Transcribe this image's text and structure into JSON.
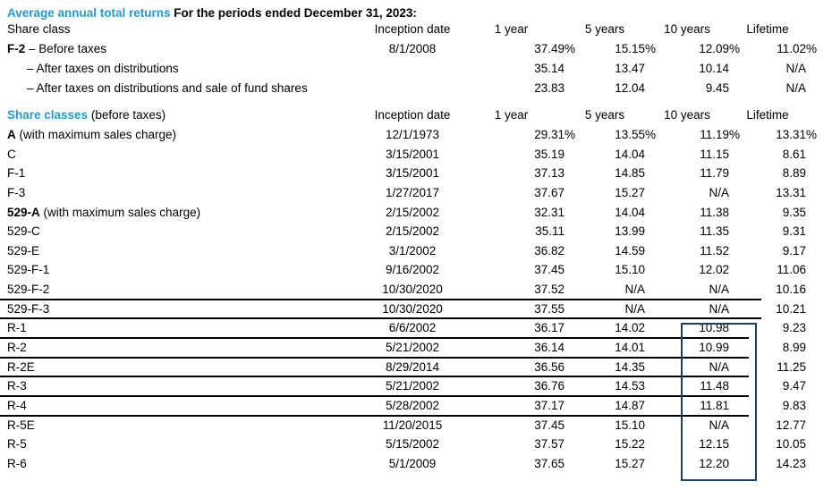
{
  "title": {
    "accent": "Average annual total returns",
    "rest": " For the periods ended December 31, 2023:"
  },
  "colors": {
    "accent_blue": "#1e9bd7",
    "box_border": "#1e3d63",
    "rule_black": "#000000"
  },
  "column_headers": {
    "inception": "Inception date",
    "y1": "1 year",
    "y5": "5 years",
    "y10": "10 years",
    "lifetime": "Lifetime"
  },
  "section1": {
    "label_accent": "",
    "label_plain": "Share class",
    "rows": [
      {
        "label_b": "F-2",
        "label_r": " – Before taxes",
        "indent": false,
        "inception": "8/1/2008",
        "y1": "37.49%",
        "y5": "15.15%",
        "y10": "12.09%",
        "life": "11.02%",
        "rule": null
      },
      {
        "label_b": "",
        "label_r": "– After taxes on distributions",
        "indent": true,
        "inception": "",
        "y1": "35.14",
        "y5": "13.47",
        "y10": "10.14",
        "life": "N/A",
        "rule": null
      },
      {
        "label_b": "",
        "label_r": "– After taxes on distributions and sale of fund shares",
        "indent": true,
        "inception": "",
        "y1": "23.83",
        "y5": "12.04",
        "y10": "9.45",
        "life": "N/A",
        "rule": null
      }
    ]
  },
  "section2": {
    "label_accent": "Share classes",
    "label_plain": " (before taxes)",
    "rows": [
      {
        "label_b": "A",
        "label_r": " (with maximum sales charge)",
        "indent": false,
        "inception": "12/1/1973",
        "y1": "29.31%",
        "y5": "13.55%",
        "y10": "11.19%",
        "life": "13.31%",
        "rule": null
      },
      {
        "label_b": "",
        "label_r": "C",
        "indent": false,
        "inception": "3/15/2001",
        "y1": "35.19",
        "y5": "14.04",
        "y10": "11.15",
        "life": "8.61",
        "rule": null
      },
      {
        "label_b": "",
        "label_r": "F-1",
        "indent": false,
        "inception": "3/15/2001",
        "y1": "37.13",
        "y5": "14.85",
        "y10": "11.79",
        "life": "8.89",
        "rule": null
      },
      {
        "label_b": "",
        "label_r": "F-3",
        "indent": false,
        "inception": "1/27/2017",
        "y1": "37.67",
        "y5": "15.27",
        "y10": "N/A",
        "life": "13.31",
        "rule": null
      },
      {
        "label_b": "529-A",
        "label_r": " (with maximum sales charge)",
        "indent": false,
        "inception": "2/15/2002",
        "y1": "32.31",
        "y5": "14.04",
        "y10": "11.38",
        "life": "9.35",
        "rule": null
      },
      {
        "label_b": "",
        "label_r": "529-C",
        "indent": false,
        "inception": "2/15/2002",
        "y1": "35.11",
        "y5": "13.99",
        "y10": "11.35",
        "life": "9.31",
        "rule": null
      },
      {
        "label_b": "",
        "label_r": "529-E",
        "indent": false,
        "inception": "3/1/2002",
        "y1": "36.82",
        "y5": "14.59",
        "y10": "11.52",
        "life": "9.17",
        "rule": null
      },
      {
        "label_b": "",
        "label_r": "529-F-1",
        "indent": false,
        "inception": "9/16/2002",
        "y1": "37.45",
        "y5": "15.10",
        "y10": "12.02",
        "life": "11.06",
        "rule": null
      },
      {
        "label_b": "",
        "label_r": "529-F-2",
        "indent": false,
        "inception": "10/30/2020",
        "y1": "37.52",
        "y5": "N/A",
        "y10": "N/A",
        "life": "10.16",
        "rule": "long"
      },
      {
        "label_b": "",
        "label_r": "529-F-3",
        "indent": false,
        "inception": "10/30/2020",
        "y1": "37.55",
        "y5": "N/A",
        "y10": "N/A",
        "life": "10.21",
        "rule": "long"
      },
      {
        "label_b": "",
        "label_r": "R-1",
        "indent": false,
        "inception": "6/6/2002",
        "y1": "36.17",
        "y5": "14.02",
        "y10": "10.98",
        "life": "9.23",
        "rule": "short"
      },
      {
        "label_b": "",
        "label_r": "R-2",
        "indent": false,
        "inception": "5/21/2002",
        "y1": "36.14",
        "y5": "14.01",
        "y10": "10.99",
        "life": "8.99",
        "rule": "short"
      },
      {
        "label_b": "",
        "label_r": "R-2E",
        "indent": false,
        "inception": "8/29/2014",
        "y1": "36.56",
        "y5": "14.35",
        "y10": "N/A",
        "life": "11.25",
        "rule": "short"
      },
      {
        "label_b": "",
        "label_r": "R-3",
        "indent": false,
        "inception": "5/21/2002",
        "y1": "36.76",
        "y5": "14.53",
        "y10": "11.48",
        "life": "9.47",
        "rule": "short"
      },
      {
        "label_b": "",
        "label_r": "R-4",
        "indent": false,
        "inception": "5/28/2002",
        "y1": "37.17",
        "y5": "14.87",
        "y10": "11.81",
        "life": "9.83",
        "rule": "short"
      },
      {
        "label_b": "",
        "label_r": "R-5E",
        "indent": false,
        "inception": "11/20/2015",
        "y1": "37.45",
        "y5": "15.10",
        "y10": "N/A",
        "life": "12.77",
        "rule": null
      },
      {
        "label_b": "",
        "label_r": "R-5",
        "indent": false,
        "inception": "5/15/2002",
        "y1": "37.57",
        "y5": "15.22",
        "y10": "12.15",
        "life": "10.05",
        "rule": null
      },
      {
        "label_b": "",
        "label_r": "R-6",
        "indent": false,
        "inception": "5/1/2009",
        "y1": "37.65",
        "y5": "15.27",
        "y10": "12.20",
        "life": "14.23",
        "rule": null
      }
    ]
  }
}
